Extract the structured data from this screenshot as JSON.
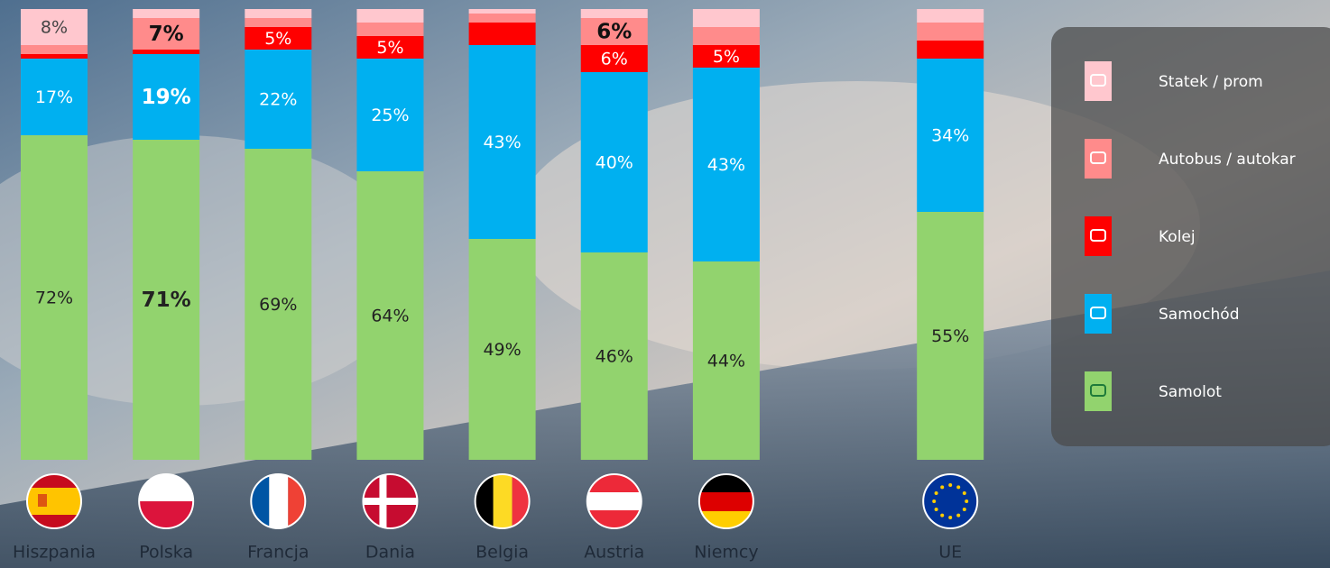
{
  "chart_data": {
    "type": "stacked_bar",
    "categories": [
      "Hiszpania",
      "Polska",
      "Francja",
      "Dania",
      "Belgia",
      "Austria",
      "Niemcy",
      "UE"
    ],
    "ylim": [
      0,
      100
    ],
    "legend": "right",
    "series": [
      {
        "name": "Samolot",
        "color": "#92d36e",
        "values": [
          72,
          71,
          69,
          64,
          49,
          46,
          44,
          55
        ],
        "value_labels": [
          "72%",
          "71%",
          "69%",
          "64%",
          "49%",
          "46%",
          "44%",
          "55%"
        ]
      },
      {
        "name": "Samochód",
        "color": "#00b0f0",
        "values": [
          17,
          19,
          22,
          25,
          43,
          40,
          43,
          34
        ],
        "value_labels": [
          "17%",
          "19%",
          "22%",
          "25%",
          "43%",
          "40%",
          "43%",
          "34%"
        ]
      },
      {
        "name": "Kolej",
        "color": "#ff0000",
        "values": [
          1,
          1,
          5,
          5,
          5,
          6,
          5,
          4
        ],
        "value_labels": [
          null,
          null,
          "5%",
          "5%",
          null,
          "6%",
          "5%",
          null
        ]
      },
      {
        "name": "Autobus / autokar",
        "color": "#ff8b8b",
        "values": [
          2,
          7,
          2,
          3,
          2,
          6,
          4,
          4
        ],
        "value_labels": [
          null,
          "7%",
          null,
          null,
          null,
          "6%",
          null,
          null
        ]
      },
      {
        "name": "Statek / prom",
        "color": "#ffc7ce",
        "values": [
          8,
          2,
          2,
          3,
          1,
          2,
          4,
          3
        ],
        "value_labels": [
          "8%",
          null,
          null,
          null,
          null,
          null,
          null,
          null
        ]
      }
    ]
  }
}
